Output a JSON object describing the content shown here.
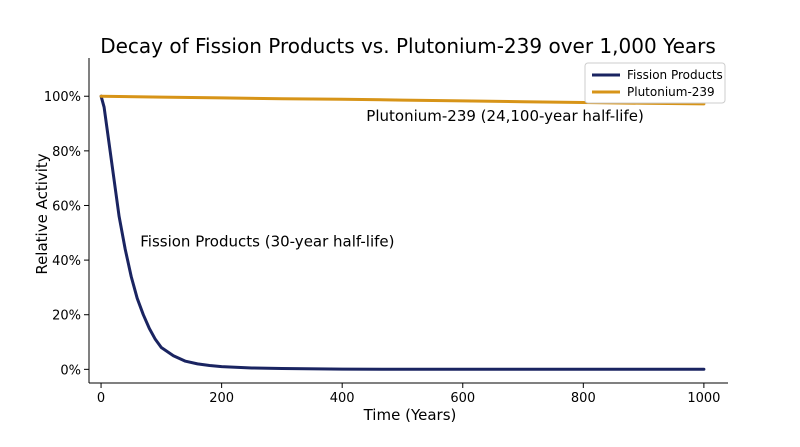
{
  "chart_data": {
    "type": "line",
    "title": "Decay of Fission Products vs. Plutonium-239 over 1,000 Years",
    "xlabel": "Time (Years)",
    "ylabel": "Relative Activity",
    "xlim": [
      -20,
      1040
    ],
    "ylim": [
      -5,
      114
    ],
    "x_ticks": [
      0,
      200,
      400,
      600,
      800,
      1000
    ],
    "y_ticks": [
      0,
      20,
      40,
      60,
      80,
      100
    ],
    "y_tick_labels": [
      "0%",
      "20%",
      "40%",
      "60%",
      "80%",
      "100%"
    ],
    "grid": false,
    "legend_position": "top-right",
    "series": [
      {
        "name": "Fission Products",
        "color": "#1a2461",
        "x": [
          0,
          5,
          10,
          20,
          30,
          40,
          50,
          60,
          70,
          80,
          90,
          100,
          120,
          140,
          160,
          180,
          200,
          250,
          300,
          400,
          500,
          600,
          700,
          800,
          900,
          1000
        ],
        "y": [
          100,
          96,
          88,
          72,
          56,
          44,
          34,
          26,
          20,
          15,
          11,
          8,
          5,
          3,
          2,
          1.4,
          1,
          0.5,
          0.3,
          0.1,
          0,
          0,
          0,
          0,
          0,
          0
        ]
      },
      {
        "name": "Plutonium-239",
        "color": "#d79418",
        "x": [
          0,
          100,
          200,
          300,
          400,
          500,
          600,
          700,
          800,
          900,
          1000
        ],
        "y": [
          100,
          99.7,
          99.4,
          99.1,
          98.9,
          98.6,
          98.3,
          98.0,
          97.7,
          97.4,
          97.2
        ]
      }
    ],
    "annotations": [
      {
        "text": "Plutonium-239 (24,100-year half-life)",
        "x": 440,
        "y": 91
      },
      {
        "text": "Fission Products (30-year half-life)",
        "x": 65,
        "y": 45
      }
    ]
  }
}
